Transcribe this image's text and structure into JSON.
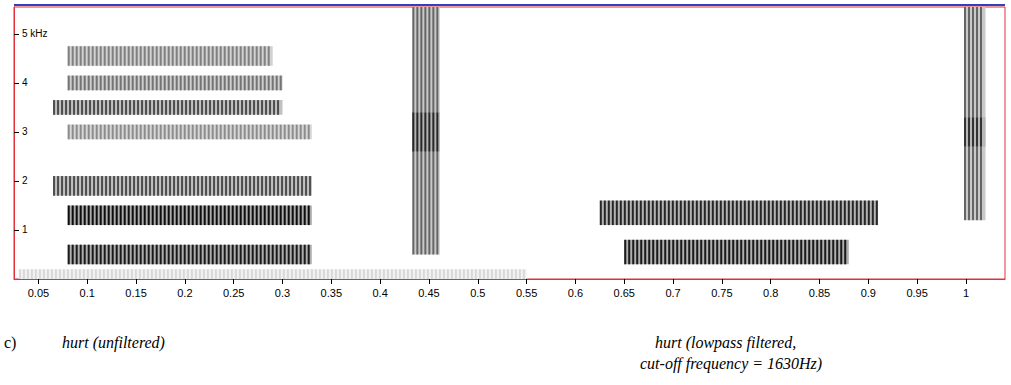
{
  "chart_data": {
    "type": "spectrogram",
    "panel": "c)",
    "captions": {
      "left": "hurt (unfiltered)",
      "right": [
        "hurt (lowpass filtered,",
        "cut-off frequency = 1630Hz)"
      ]
    },
    "xlim": [
      0.025,
      1.04
    ],
    "xticks": [
      0.05,
      0.1,
      0.15,
      0.2,
      0.25,
      0.3,
      0.35,
      0.4,
      0.45,
      0.5,
      0.55,
      0.6,
      0.65,
      0.7,
      0.75,
      0.8,
      0.85,
      0.9,
      0.95,
      1
    ],
    "ylim": [
      0,
      5.55
    ],
    "yticks": [
      1,
      2,
      3,
      4,
      {
        "value": 5,
        "label": "5 kHz"
      }
    ],
    "grid": false,
    "regions": [
      {
        "time": [
          0.03,
          0.55
        ],
        "freq": [
          0,
          0.2
        ],
        "level": 0.15
      },
      {
        "time": [
          0.08,
          0.33
        ],
        "freq": [
          0.3,
          0.7
        ],
        "level": 0.9
      },
      {
        "time": [
          0.08,
          0.33
        ],
        "freq": [
          1.1,
          1.5
        ],
        "level": 0.95
      },
      {
        "time": [
          0.065,
          0.33
        ],
        "freq": [
          1.7,
          2.1
        ],
        "level": 0.7
      },
      {
        "time": [
          0.08,
          0.33
        ],
        "freq": [
          2.85,
          3.15
        ],
        "level": 0.45
      },
      {
        "time": [
          0.065,
          0.3
        ],
        "freq": [
          3.35,
          3.65
        ],
        "level": 0.7
      },
      {
        "time": [
          0.08,
          0.3
        ],
        "freq": [
          3.85,
          4.15
        ],
        "level": 0.55
      },
      {
        "time": [
          0.08,
          0.29
        ],
        "freq": [
          4.35,
          4.75
        ],
        "level": 0.5
      },
      {
        "time": [
          0.433,
          0.461
        ],
        "freq": [
          0.5,
          5.55
        ],
        "level": 0.6
      },
      {
        "time": [
          0.433,
          0.461
        ],
        "freq": [
          2.6,
          3.4
        ],
        "level": 0.85
      },
      {
        "time": [
          0.625,
          0.91
        ],
        "freq": [
          1.1,
          1.6
        ],
        "level": 0.85
      },
      {
        "time": [
          0.65,
          0.88
        ],
        "freq": [
          0.3,
          0.8
        ],
        "level": 0.9
      },
      {
        "time": [
          0.998,
          1.02
        ],
        "freq": [
          1.2,
          5.55
        ],
        "level": 0.6
      },
      {
        "time": [
          0.998,
          1.02
        ],
        "freq": [
          2.7,
          3.3
        ],
        "level": 0.8
      }
    ]
  }
}
